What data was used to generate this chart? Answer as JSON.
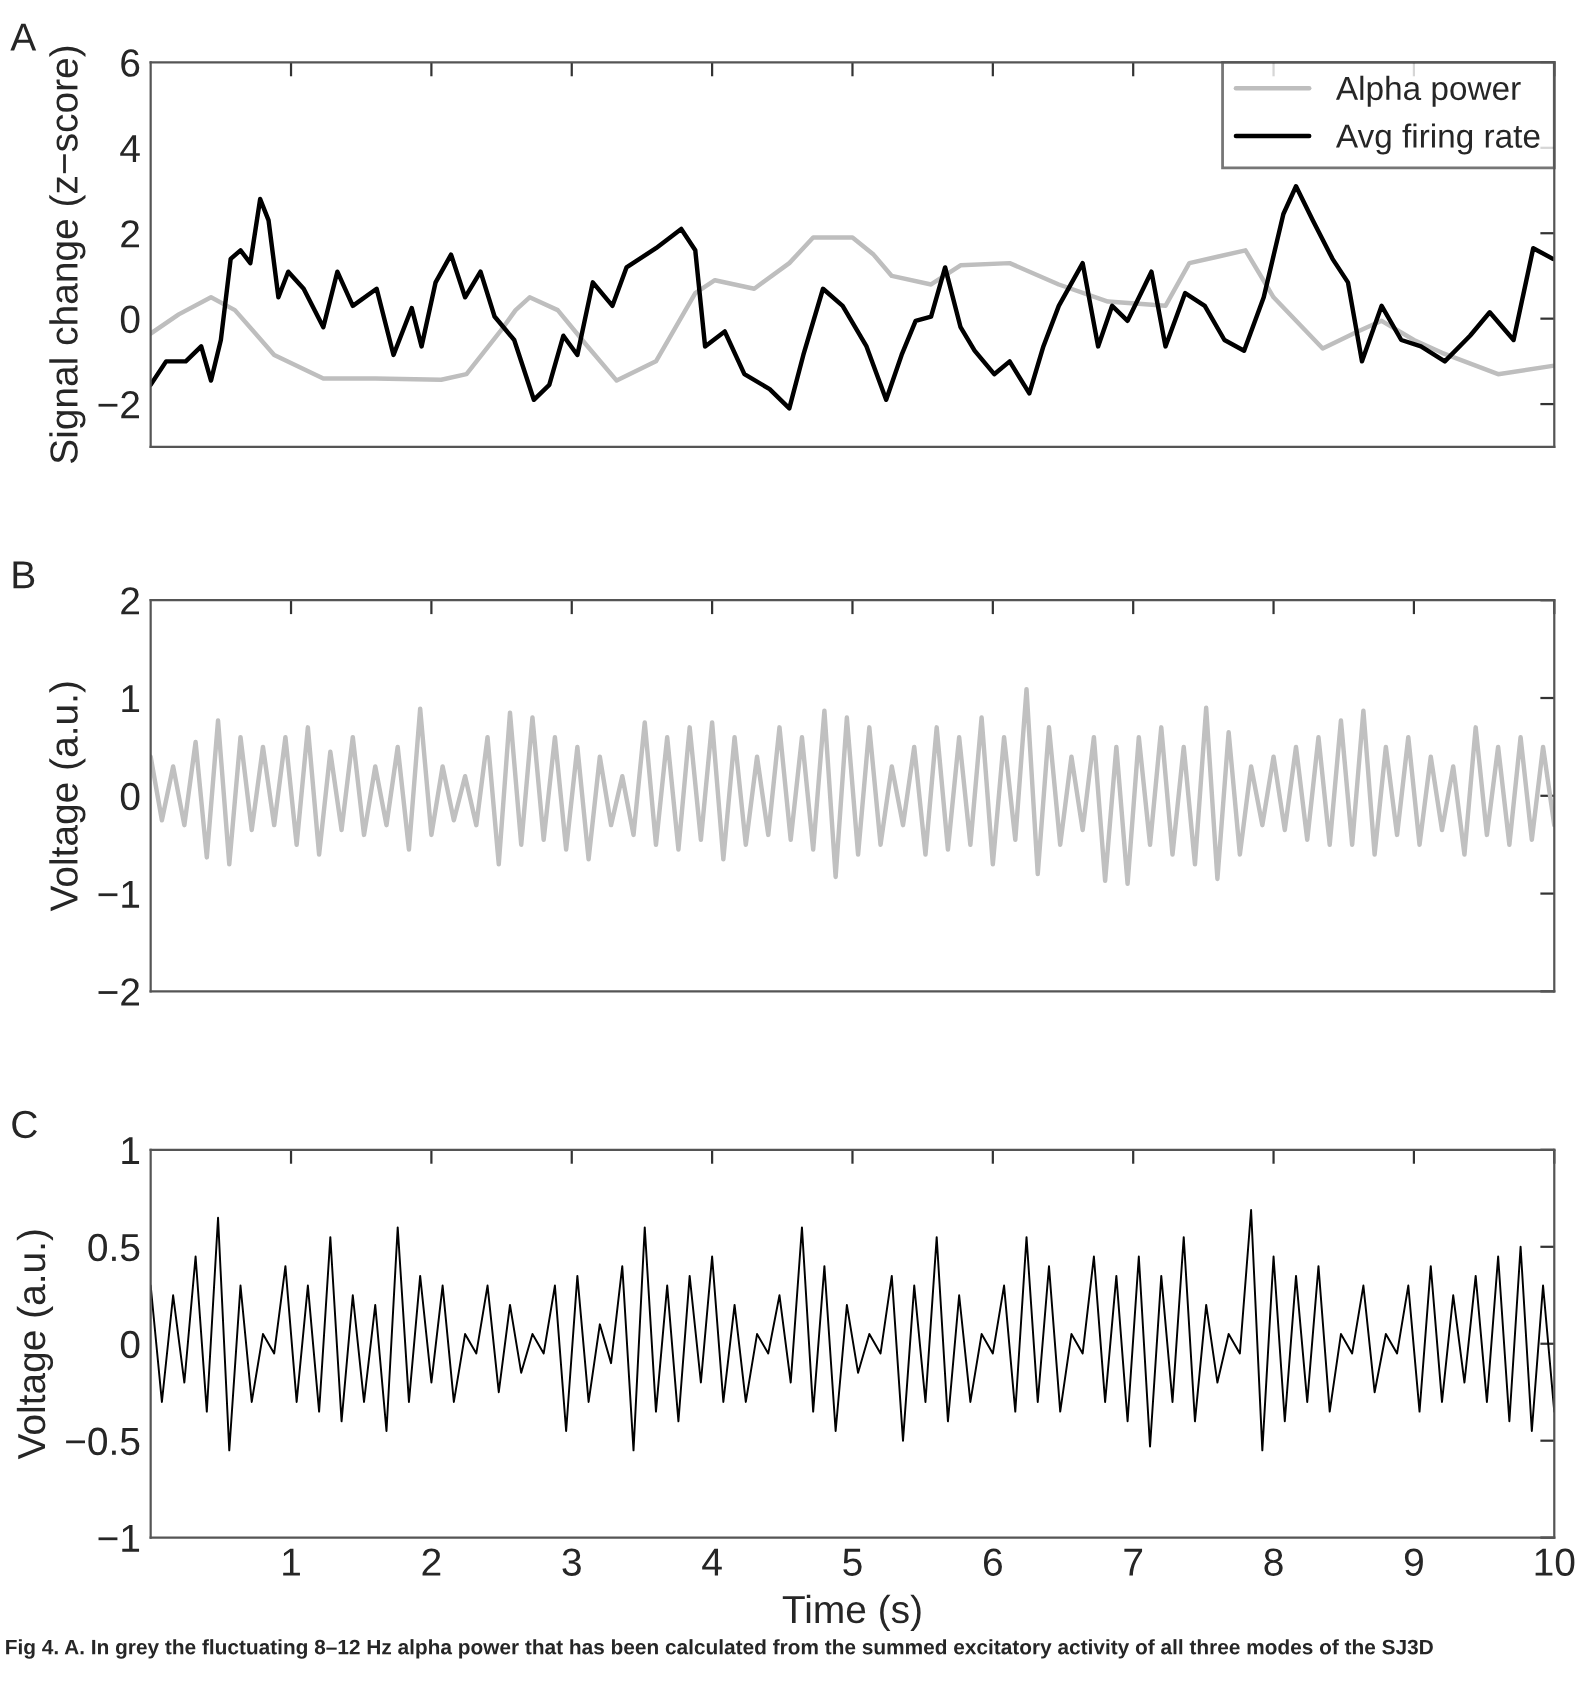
{
  "chart_data": [
    {
      "type": "line",
      "title": "A",
      "ylabel": "Signal change (z−score)",
      "xlim": [
        0,
        10
      ],
      "xticks": [
        1,
        2,
        3,
        4,
        5,
        6,
        7,
        8,
        9,
        10
      ],
      "ylim": [
        -3,
        6
      ],
      "yticks": [
        {
          "value": -2,
          "label": "−2"
        },
        0,
        2,
        4,
        6
      ],
      "tick_labels": "y",
      "legend": "top right",
      "series": [
        {
          "name": "Alpha power",
          "color": "#bebebe",
          "x": [
            0,
            0.2,
            0.43,
            0.6,
            0.88,
            1.23,
            1.6,
            2.07,
            2.25,
            2.49,
            2.6,
            2.7,
            2.9,
            3.1,
            3.32,
            3.6,
            3.88,
            4.02,
            4.3,
            4.55,
            4.72,
            5.0,
            5.15,
            5.28,
            5.56,
            5.77,
            6.12,
            6.47,
            6.82,
            7.23,
            7.4,
            7.6,
            7.8,
            8.0,
            8.35,
            8.6,
            8.77,
            9.0,
            9.2,
            9.6,
            10
          ],
          "values": [
            -0.35,
            0.1,
            0.5,
            0.2,
            -0.85,
            -1.4,
            -1.4,
            -1.43,
            -1.3,
            -0.3,
            0.2,
            0.5,
            0.2,
            -0.6,
            -1.45,
            -1.0,
            0.6,
            0.9,
            0.7,
            1.3,
            1.9,
            1.9,
            1.5,
            1.0,
            0.8,
            1.25,
            1.3,
            0.8,
            0.4,
            0.3,
            1.3,
            1.45,
            1.6,
            0.5,
            -0.7,
            -0.3,
            -0.05,
            -0.5,
            -0.8,
            -1.3,
            -1.1
          ]
        },
        {
          "name": "Avg firing rate",
          "color": "#000000",
          "x": [
            0,
            0.11,
            0.25,
            0.36,
            0.43,
            0.5,
            0.57,
            0.64,
            0.71,
            0.78,
            0.84,
            0.91,
            0.98,
            1.09,
            1.23,
            1.33,
            1.44,
            1.61,
            1.73,
            1.86,
            1.93,
            2.03,
            2.14,
            2.24,
            2.35,
            2.45,
            2.59,
            2.73,
            2.84,
            2.94,
            3.04,
            3.15,
            3.29,
            3.39,
            3.6,
            3.78,
            3.88,
            3.95,
            4.09,
            4.23,
            4.41,
            4.55,
            4.65,
            4.79,
            4.93,
            5.1,
            5.24,
            5.35,
            5.45,
            5.56,
            5.66,
            5.77,
            5.87,
            6.01,
            6.12,
            6.26,
            6.36,
            6.47,
            6.64,
            6.75,
            6.85,
            6.96,
            7.13,
            7.23,
            7.37,
            7.51,
            7.65,
            7.79,
            7.93,
            8.07,
            8.16,
            8.28,
            8.42,
            8.53,
            8.63,
            8.77,
            8.91,
            9.05,
            9.22,
            9.4,
            9.54,
            9.71,
            9.85,
            9.99
          ],
          "values": [
            -1.55,
            -1.0,
            -1.0,
            -0.65,
            -1.45,
            -0.5,
            1.4,
            1.6,
            1.3,
            2.8,
            2.3,
            0.5,
            1.1,
            0.7,
            -0.2,
            1.1,
            0.3,
            0.7,
            -0.85,
            0.25,
            -0.65,
            0.85,
            1.5,
            0.5,
            1.1,
            0.05,
            -0.5,
            -1.9,
            -1.55,
            -0.4,
            -0.85,
            0.85,
            0.3,
            1.2,
            1.65,
            2.1,
            1.6,
            -0.65,
            -0.3,
            -1.3,
            -1.65,
            -2.1,
            -0.85,
            0.7,
            0.3,
            -0.65,
            -1.9,
            -0.85,
            -0.05,
            0.05,
            1.2,
            -0.2,
            -0.75,
            -1.3,
            -1.0,
            -1.75,
            -0.65,
            0.3,
            1.3,
            -0.65,
            0.3,
            -0.05,
            1.1,
            -0.65,
            0.6,
            0.3,
            -0.5,
            -0.75,
            0.5,
            2.45,
            3.1,
            2.3,
            1.4,
            0.85,
            -1.0,
            0.3,
            -0.5,
            -0.65,
            -1.0,
            -0.4,
            0.15,
            -0.5,
            1.65,
            1.4
          ]
        }
      ]
    },
    {
      "type": "line",
      "title": "B",
      "ylabel": "Voltage (a.u.)",
      "xlim": [
        0,
        10
      ],
      "xticks": [
        1,
        2,
        3,
        4,
        5,
        6,
        7,
        8,
        9,
        10
      ],
      "ylim": [
        -2,
        2
      ],
      "yticks": [
        {
          "value": -2,
          "label": "−2"
        },
        {
          "value": -1,
          "label": "−1"
        },
        0,
        1,
        2
      ],
      "tick_labels": "y",
      "series": [
        {
          "color": "#c0c0c0",
          "x": [
            0,
            0.08,
            0.16,
            0.24,
            0.32,
            0.4,
            0.48,
            0.56,
            0.64,
            0.72,
            0.8,
            0.88,
            0.96,
            1.04,
            1.12,
            1.2,
            1.28,
            1.36,
            1.44,
            1.52,
            1.6,
            1.68,
            1.76,
            1.84,
            1.92,
            2.0,
            2.08,
            2.16,
            2.24,
            2.32,
            2.4,
            2.48,
            2.56,
            2.64,
            2.72,
            2.8,
            2.88,
            2.96,
            3.04,
            3.12,
            3.2,
            3.28,
            3.36,
            3.44,
            3.52,
            3.6,
            3.68,
            3.76,
            3.84,
            3.92,
            4.0,
            4.08,
            4.16,
            4.24,
            4.32,
            4.4,
            4.48,
            4.56,
            4.64,
            4.72,
            4.8,
            4.88,
            4.96,
            5.04,
            5.12,
            5.2,
            5.28,
            5.36,
            5.44,
            5.52,
            5.6,
            5.68,
            5.76,
            5.84,
            5.92,
            6.0,
            6.08,
            6.16,
            6.24,
            6.32,
            6.4,
            6.48,
            6.56,
            6.64,
            6.72,
            6.8,
            6.88,
            6.96,
            7.04,
            7.12,
            7.2,
            7.28,
            7.36,
            7.44,
            7.52,
            7.6,
            7.68,
            7.76,
            7.84,
            7.92,
            8.0,
            8.08,
            8.16,
            8.24,
            8.32,
            8.4,
            8.48,
            8.56,
            8.64,
            8.72,
            8.8,
            8.88,
            8.96,
            9.04,
            9.12,
            9.2,
            9.28,
            9.36,
            9.44,
            9.52,
            9.6,
            9.68,
            9.76,
            9.84,
            9.92,
            10
          ],
          "values": [
            0.4,
            -0.25,
            0.3,
            -0.3,
            0.55,
            -0.63,
            0.77,
            -0.7,
            0.6,
            -0.35,
            0.5,
            -0.3,
            0.6,
            -0.5,
            0.7,
            -0.6,
            0.45,
            -0.35,
            0.6,
            -0.4,
            0.3,
            -0.3,
            0.5,
            -0.55,
            0.89,
            -0.4,
            0.3,
            -0.25,
            0.2,
            -0.3,
            0.6,
            -0.7,
            0.85,
            -0.5,
            0.8,
            -0.45,
            0.6,
            -0.55,
            0.5,
            -0.65,
            0.4,
            -0.3,
            0.2,
            -0.4,
            0.75,
            -0.5,
            0.6,
            -0.55,
            0.7,
            -0.45,
            0.75,
            -0.65,
            0.6,
            -0.5,
            0.4,
            -0.4,
            0.7,
            -0.45,
            0.6,
            -0.55,
            0.87,
            -0.83,
            0.8,
            -0.6,
            0.7,
            -0.5,
            0.3,
            -0.3,
            0.5,
            -0.6,
            0.7,
            -0.55,
            0.6,
            -0.5,
            0.8,
            -0.7,
            0.6,
            -0.45,
            1.09,
            -0.8,
            0.7,
            -0.5,
            0.4,
            -0.35,
            0.6,
            -0.87,
            0.5,
            -0.9,
            0.6,
            -0.5,
            0.7,
            -0.6,
            0.5,
            -0.7,
            0.9,
            -0.85,
            0.65,
            -0.6,
            0.3,
            -0.3,
            0.4,
            -0.35,
            0.5,
            -0.45,
            0.6,
            -0.5,
            0.77,
            -0.5,
            0.87,
            -0.6,
            0.5,
            -0.4,
            0.6,
            -0.5,
            0.4,
            -0.35,
            0.3,
            -0.6,
            0.7,
            -0.4,
            0.5,
            -0.5,
            0.6,
            -0.45,
            0.5,
            -0.3
          ]
        }
      ]
    },
    {
      "type": "line",
      "title": "C",
      "ylabel": "Voltage (a.u.)",
      "xlabel": "Time (s)",
      "xlim": [
        0,
        10
      ],
      "xticks": [
        1,
        2,
        3,
        4,
        5,
        6,
        7,
        8,
        9,
        10
      ],
      "ylim": [
        -1,
        1
      ],
      "yticks": [
        {
          "value": -1,
          "label": "−1"
        },
        {
          "value": -0.5,
          "label": "−0.5"
        },
        0,
        0.5,
        1
      ],
      "annotations": [
        "Fig 4. A. In grey the fluctuating 8–12 Hz alpha power that has been calculated from the summed excitatory activity of all three modes of the SJ3D"
      ],
      "series": [
        {
          "color": "#000000",
          "x": [
            0,
            0.08,
            0.16,
            0.24,
            0.32,
            0.4,
            0.48,
            0.56,
            0.64,
            0.72,
            0.8,
            0.88,
            0.96,
            1.04,
            1.12,
            1.2,
            1.28,
            1.36,
            1.44,
            1.52,
            1.6,
            1.68,
            1.76,
            1.84,
            1.92,
            2.0,
            2.08,
            2.16,
            2.24,
            2.32,
            2.4,
            2.48,
            2.56,
            2.64,
            2.72,
            2.8,
            2.88,
            2.96,
            3.04,
            3.12,
            3.2,
            3.28,
            3.36,
            3.44,
            3.52,
            3.6,
            3.68,
            3.76,
            3.84,
            3.92,
            4.0,
            4.08,
            4.16,
            4.24,
            4.32,
            4.4,
            4.48,
            4.56,
            4.64,
            4.72,
            4.8,
            4.88,
            4.96,
            5.04,
            5.12,
            5.2,
            5.28,
            5.36,
            5.44,
            5.52,
            5.6,
            5.68,
            5.76,
            5.84,
            5.92,
            6.0,
            6.08,
            6.16,
            6.24,
            6.32,
            6.4,
            6.48,
            6.56,
            6.64,
            6.72,
            6.8,
            6.88,
            6.96,
            7.04,
            7.12,
            7.2,
            7.28,
            7.36,
            7.44,
            7.52,
            7.6,
            7.68,
            7.76,
            7.84,
            7.92,
            8.0,
            8.08,
            8.16,
            8.24,
            8.32,
            8.4,
            8.48,
            8.56,
            8.64,
            8.72,
            8.8,
            8.88,
            8.96,
            9.04,
            9.12,
            9.2,
            9.28,
            9.36,
            9.44,
            9.52,
            9.6,
            9.68,
            9.76,
            9.84,
            9.92,
            10
          ],
          "values": [
            0.3,
            -0.3,
            0.25,
            -0.2,
            0.45,
            -0.35,
            0.65,
            -0.55,
            0.3,
            -0.3,
            0.05,
            -0.05,
            0.4,
            -0.3,
            0.3,
            -0.35,
            0.55,
            -0.4,
            0.25,
            -0.3,
            0.2,
            -0.45,
            0.6,
            -0.3,
            0.35,
            -0.2,
            0.3,
            -0.3,
            0.05,
            -0.05,
            0.3,
            -0.25,
            0.2,
            -0.15,
            0.05,
            -0.05,
            0.3,
            -0.45,
            0.35,
            -0.3,
            0.1,
            -0.1,
            0.4,
            -0.55,
            0.6,
            -0.35,
            0.3,
            -0.4,
            0.35,
            -0.2,
            0.45,
            -0.3,
            0.2,
            -0.3,
            0.05,
            -0.05,
            0.25,
            -0.2,
            0.6,
            -0.35,
            0.4,
            -0.45,
            0.2,
            -0.15,
            0.05,
            -0.05,
            0.35,
            -0.5,
            0.3,
            -0.3,
            0.55,
            -0.4,
            0.25,
            -0.3,
            0.05,
            -0.05,
            0.3,
            -0.35,
            0.55,
            -0.3,
            0.4,
            -0.35,
            0.05,
            -0.05,
            0.45,
            -0.3,
            0.35,
            -0.4,
            0.45,
            -0.53,
            0.35,
            -0.3,
            0.55,
            -0.4,
            0.2,
            -0.2,
            0.05,
            -0.05,
            0.69,
            -0.55,
            0.45,
            -0.4,
            0.35,
            -0.3,
            0.4,
            -0.35,
            0.05,
            -0.05,
            0.3,
            -0.25,
            0.05,
            -0.05,
            0.3,
            -0.35,
            0.4,
            -0.3,
            0.25,
            -0.2,
            0.35,
            -0.3,
            0.45,
            -0.4,
            0.5,
            -0.45,
            0.3,
            -0.35
          ]
        }
      ]
    }
  ]
}
